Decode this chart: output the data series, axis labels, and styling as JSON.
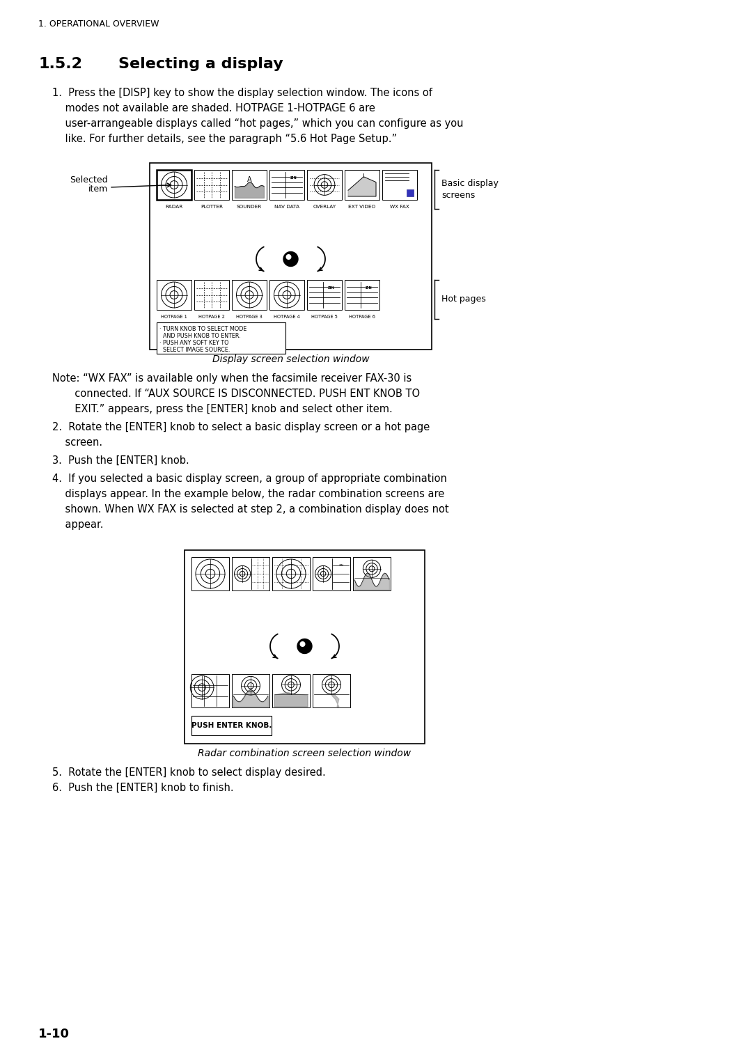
{
  "bg_color": "#ffffff",
  "header_text": "1. OPERATIONAL OVERVIEW",
  "section_number": "1.5.2",
  "section_title": "Selecting a display",
  "fig1_caption": "Display screen selection window",
  "fig2_caption": "Radar combination screen selection window",
  "footer_text": "1-10",
  "selected_label_1": "Selected",
  "selected_label_2": "item",
  "basic_display_label_1": "Basic display",
  "basic_display_label_2": "screens",
  "hot_pages_label": "Hot pages",
  "basic_labels": [
    "RADAR",
    "PLOTTER",
    "SOUNDER",
    "NAV DATA",
    "OVERLAY",
    "EXT VIDEO",
    "WX FAX"
  ],
  "hotpage_labels": [
    "HOTPAGE 1",
    "HOTPAGE 2",
    "HOTPAGE 3",
    "HOTPAGE 4",
    "HOTPAGE 5",
    "HOTPAGE 6"
  ],
  "fig1_instructions": [
    "· TURN KNOB TO SELECT MODE",
    "  AND PUSH KNOB TO ENTER.",
    "· PUSH ANY SOFT KEY TO",
    "  SELECT IMAGE SOURCE."
  ],
  "fig2_instruction": "PUSH ENTER KNOB.",
  "para1_lines": [
    "1.  Press the [DISP] key to show the display selection window. The icons of",
    "    modes not available are shaded. HOTPAGE 1-HOTPAGE 6 are",
    "    user-arrangeable displays called “hot pages,” which you can configure as you",
    "    like. For further details, see the paragraph “5.6 Hot Page Setup.”"
  ],
  "note_lines": [
    "Note: “WX FAX” is available only when the facsimile receiver FAX-30 is",
    "       connected. If “AUX SOURCE IS DISCONNECTED. PUSH ENT KNOB TO",
    "       EXIT.” appears, press the [ENTER] knob and select other item."
  ],
  "step2_lines": [
    "2.  Rotate the [ENTER] knob to select a basic display screen or a hot page",
    "    screen."
  ],
  "step3_line": "3.  Push the [ENTER] knob.",
  "step4_lines": [
    "4.  If you selected a basic display screen, a group of appropriate combination",
    "    displays appear. In the example below, the radar combination screens are",
    "    shown. When WX FAX is selected at step 2, a combination display does not",
    "    appear."
  ],
  "step5_line": "5.  Rotate the [ENTER] knob to select display desired.",
  "step6_line": "6.  Push the [ENTER] knob to finish."
}
